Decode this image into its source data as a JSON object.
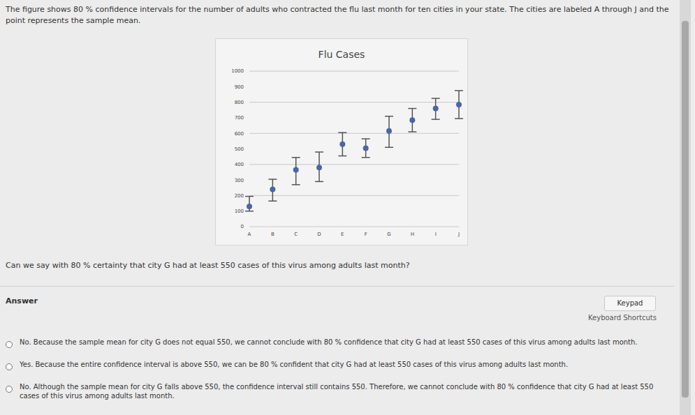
{
  "header": {
    "text": "The figure shows 80 % confidence intervals for the number of adults who contracted the flu last month for ten cities in your state. The cities are labeled A through J and the point represents the sample mean."
  },
  "chart_data": {
    "type": "scatter",
    "title": "Flu Cases",
    "categories": [
      "A",
      "B",
      "C",
      "D",
      "E",
      "F",
      "G",
      "H",
      "I",
      "J"
    ],
    "values": [
      130,
      240,
      365,
      380,
      530,
      505,
      615,
      685,
      760,
      785
    ],
    "ci_low": [
      100,
      165,
      270,
      290,
      455,
      445,
      510,
      610,
      690,
      695
    ],
    "ci_high": [
      195,
      305,
      445,
      480,
      605,
      565,
      710,
      760,
      825,
      875
    ],
    "color": "#4a66a6",
    "ylim": [
      0,
      1000
    ],
    "yticks": [
      0,
      100,
      200,
      300,
      400,
      500,
      600,
      700,
      800,
      900,
      1000
    ],
    "grid": true
  },
  "question": "Can we say with 80 % certainty that city G had at least 550 cases of this virus among adults last month?",
  "answer": {
    "label": "Answer",
    "keypad": "Keypad",
    "shortcuts": "Keyboard Shortcuts",
    "options": [
      "No. Because the sample mean for city G does not equal 550, we cannot conclude with 80 % confidence that city G had at least 550 cases of this virus among adults last month.",
      "Yes. Because the entire confidence interval is above 550, we can be 80 % confident that city G had at least 550 cases of this virus among adults last month.",
      "No. Although the sample mean for city G falls above 550, the confidence interval still contains 550. Therefore, we cannot conclude with 80 % confidence that city G had at least 550 cases of this virus among adults last month."
    ]
  }
}
